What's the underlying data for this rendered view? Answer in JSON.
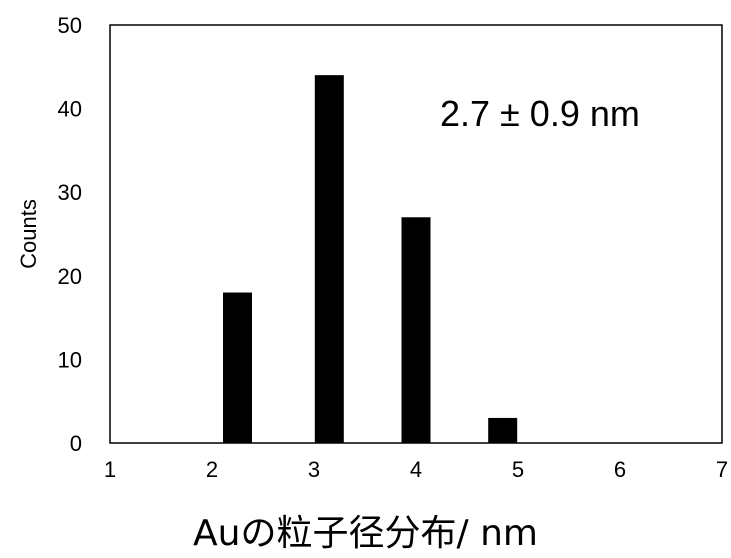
{
  "chart_data": {
    "type": "bar",
    "x": [
      2.25,
      3.15,
      4.0,
      4.85
    ],
    "values": [
      18,
      44,
      27,
      3
    ],
    "xlim": [
      1,
      7
    ],
    "ylim": [
      0,
      50
    ],
    "xticks": [
      "1",
      "2",
      "3",
      "4",
      "5",
      "6",
      "7"
    ],
    "yticks": [
      "0",
      "10",
      "20",
      "30",
      "40",
      "50"
    ],
    "xlabel": "Auの粒子径分布/ nm",
    "ylabel": "Counts",
    "annotation": "2.7 ± 0.9 nm",
    "grid": false,
    "legend": "none",
    "bar_color": "#000000"
  }
}
